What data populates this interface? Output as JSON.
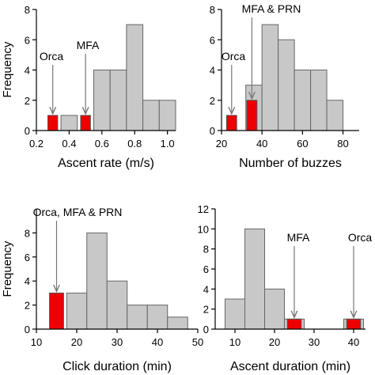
{
  "chart_data": [
    {
      "type": "bar",
      "xlabel": "Ascent rate (m/s)",
      "ylabel": "Frequency",
      "xlim": [
        0.2,
        1.05
      ],
      "ylim": [
        0,
        8
      ],
      "xticks": [
        "0.2",
        "0.4",
        "0.6",
        "0.8",
        "1.0"
      ],
      "xtick_values": [
        0.2,
        0.4,
        0.6,
        0.8,
        1.0
      ],
      "yticks": [
        "0",
        "2",
        "4",
        "6",
        "8"
      ],
      "ytick_values": [
        0,
        2,
        4,
        6,
        8
      ],
      "bin_width": 0.1,
      "bins": [
        {
          "start": 0.35,
          "value": 1,
          "highlight": false
        },
        {
          "start": 0.55,
          "value": 4,
          "highlight": false
        },
        {
          "start": 0.65,
          "value": 4,
          "highlight": false
        },
        {
          "start": 0.75,
          "value": 7,
          "highlight": false
        },
        {
          "start": 0.85,
          "value": 2,
          "highlight": false
        },
        {
          "start": 0.95,
          "value": 2,
          "highlight": false
        }
      ],
      "highlights": [
        {
          "x": 0.3,
          "value": 1
        },
        {
          "x": 0.5,
          "value": 1
        }
      ],
      "highlight_width": 0.06,
      "annotations": [
        {
          "text": "Orca",
          "x": 0.3,
          "value": 1
        },
        {
          "text": "MFA",
          "x": 0.5,
          "value": 1
        }
      ]
    },
    {
      "type": "bar",
      "xlabel": "Number of buzzes",
      "ylabel": "",
      "xlim": [
        20,
        88
      ],
      "ylim": [
        0,
        8
      ],
      "xticks": [
        "20",
        "40",
        "60",
        "80"
      ],
      "xtick_values": [
        20,
        40,
        60,
        80
      ],
      "yticks": [
        "0",
        "2",
        "4",
        "6",
        "8"
      ],
      "ytick_values": [
        0,
        2,
        4,
        6,
        8
      ],
      "bin_width": 8,
      "bins": [
        {
          "start": 32,
          "value": 3,
          "highlight": false
        },
        {
          "start": 40,
          "value": 7,
          "highlight": false
        },
        {
          "start": 48,
          "value": 6,
          "highlight": false
        },
        {
          "start": 56,
          "value": 4,
          "highlight": false
        },
        {
          "start": 64,
          "value": 4,
          "highlight": false
        },
        {
          "start": 72,
          "value": 2,
          "highlight": false
        }
      ],
      "highlights": [
        {
          "x": 25,
          "value": 1
        },
        {
          "x": 35,
          "value": 2
        }
      ],
      "highlight_width": 5,
      "annotations": [
        {
          "text": "Orca",
          "x": 25,
          "value": 1
        },
        {
          "text": "MFA & PRN",
          "x": 35,
          "value": 2
        }
      ]
    },
    {
      "type": "bar",
      "xlabel": "Click duration (min)",
      "ylabel": "Frequency",
      "xlim": [
        10,
        50
      ],
      "ylim": [
        0,
        10
      ],
      "xticks": [
        "10",
        "20",
        "30",
        "40",
        "50"
      ],
      "xtick_values": [
        10,
        20,
        30,
        40,
        50
      ],
      "yticks": [
        "0",
        "2",
        "4",
        "6",
        "8"
      ],
      "ytick_values": [
        0,
        2,
        4,
        6,
        8
      ],
      "bin_width": 5,
      "bins": [
        {
          "start": 17.5,
          "value": 3,
          "highlight": false
        },
        {
          "start": 22.5,
          "value": 8,
          "highlight": false
        },
        {
          "start": 27.5,
          "value": 4,
          "highlight": false
        },
        {
          "start": 32.5,
          "value": 2,
          "highlight": false
        },
        {
          "start": 37.5,
          "value": 2,
          "highlight": false
        },
        {
          "start": 42.5,
          "value": 1,
          "highlight": false
        }
      ],
      "highlights": [
        {
          "x": 15,
          "value": 3
        }
      ],
      "highlight_width": 3.5,
      "annotations": [
        {
          "text": "Orca, MFA & PRN",
          "x": 15,
          "value": 3
        }
      ]
    },
    {
      "type": "bar",
      "xlabel": "Ascent duration (min)",
      "ylabel": "",
      "xlim": [
        5,
        43
      ],
      "ylim": [
        0,
        12
      ],
      "xticks": [
        "10",
        "20",
        "30",
        "40"
      ],
      "xtick_values": [
        10,
        20,
        30,
        40
      ],
      "yticks": [
        "0",
        "2",
        "4",
        "6",
        "8",
        "10",
        "12"
      ],
      "ytick_values": [
        0,
        2,
        4,
        6,
        8,
        10,
        12
      ],
      "bin_width": 5,
      "bins": [
        {
          "start": 7.5,
          "value": 3,
          "highlight": false
        },
        {
          "start": 12.5,
          "value": 10,
          "highlight": false
        },
        {
          "start": 17.5,
          "value": 4,
          "highlight": false
        },
        {
          "start": 22.5,
          "value": 1,
          "highlight": false
        },
        {
          "start": 37.5,
          "value": 1,
          "highlight": false
        }
      ],
      "highlights": [
        {
          "x": 25,
          "value": 1
        },
        {
          "x": 40,
          "value": 1
        }
      ],
      "highlight_width": 3.5,
      "annotations": [
        {
          "text": "MFA",
          "x": 25,
          "value": 1
        },
        {
          "text": "Orca",
          "x": 40,
          "value": 1
        }
      ]
    }
  ],
  "colors": {
    "bar_fill": "#c8c8c8",
    "bar_stroke": "#666666",
    "highlight_fill": "#ee0000",
    "highlight_stroke": "#555555",
    "axis": "#000000",
    "arrow": "#777777"
  }
}
